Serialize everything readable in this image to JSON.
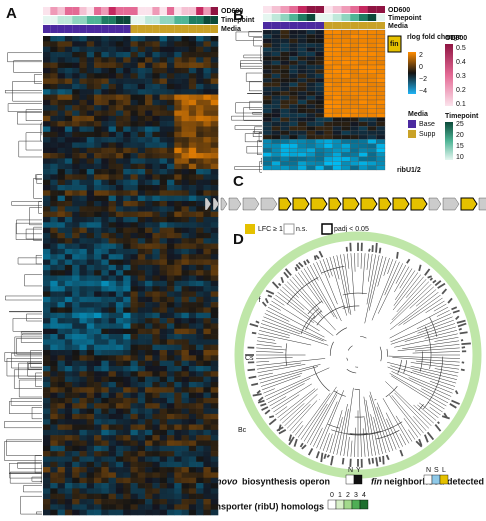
{
  "panel_labels": [
    "A",
    "B",
    "C",
    "D"
  ],
  "panel_a": {
    "annotations": [
      "OD600",
      "Timepoint",
      "Media"
    ]
  },
  "panel_b": {
    "annotations": [
      "OD600",
      "Timepoint",
      "Media"
    ],
    "highlight": "fin",
    "gene_label": "ribU1/2",
    "legends": {
      "fold_change": {
        "title": "rlog fold change",
        "labels": [
          "2",
          "0",
          "−2",
          "−4"
        ]
      },
      "od600": {
        "title": "OD600",
        "labels": [
          "0.5",
          "0.4",
          "0.3",
          "0.2",
          "0.1"
        ]
      },
      "media": {
        "title": "Media",
        "items": [
          "Base",
          "Supp"
        ]
      },
      "timepoint": {
        "title": "Timepoint",
        "labels": [
          "25",
          "20",
          "15",
          "10"
        ]
      }
    }
  },
  "panel_c": {
    "legend": [
      "LFC ≥ 1",
      "n.s.",
      "padj < 0.05"
    ]
  },
  "panel_d": {
    "clade_labels": [
      "Pf",
      "Cs",
      "Bc"
    ],
    "legend": {
      "operon": {
        "title_italic": "De novo",
        "title": "biosynthesis operon",
        "levels": [
          "N",
          "Y"
        ]
      },
      "neighborhood": {
        "title_italic": "fin",
        "title": "neighborhood detected",
        "levels": [
          "N",
          "S",
          "L"
        ]
      },
      "transporter": {
        "title": "Transporter (ribU) homologs",
        "levels": [
          "0",
          "1",
          "2",
          "3",
          "4"
        ]
      }
    }
  }
}
